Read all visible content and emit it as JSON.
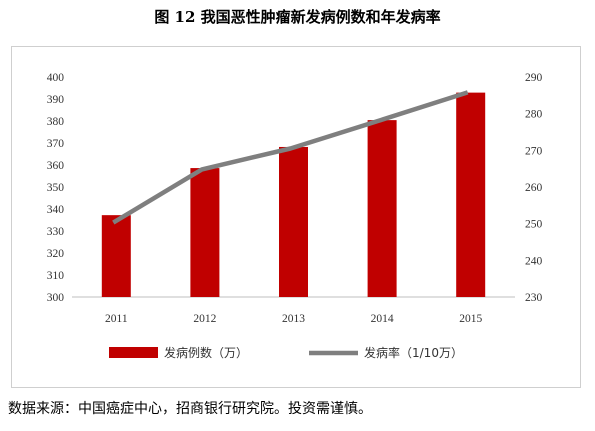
{
  "title": "图 12  我国恶性肿瘤新发病例数和年发病率",
  "source": "数据来源：中国癌症中心，招商银行研究院。投资需谨慎。",
  "chart_data": {
    "type": "bar+line",
    "categories": [
      "2011",
      "2012",
      "2013",
      "2014",
      "2015"
    ],
    "left_axis": {
      "ylim": [
        300,
        400
      ],
      "ticks": [
        300,
        310,
        320,
        330,
        340,
        350,
        360,
        370,
        380,
        390,
        400
      ]
    },
    "right_axis": {
      "ylim": [
        230,
        290
      ],
      "ticks": [
        230,
        240,
        250,
        260,
        270,
        280,
        290
      ]
    },
    "series": [
      {
        "name": "发病例数（万）",
        "type": "bar",
        "axis": "left",
        "color": "#c00000",
        "values": [
          337.2,
          358.6,
          368.2,
          380.4,
          392.9
        ]
      },
      {
        "name": "发病率（1/10万）",
        "type": "line",
        "axis": "right",
        "color": "#7f7f7f",
        "values": [
          250.3,
          264.8,
          270.5,
          278.1,
          285.8
        ]
      }
    ],
    "legend_position": "bottom",
    "grid": false
  }
}
